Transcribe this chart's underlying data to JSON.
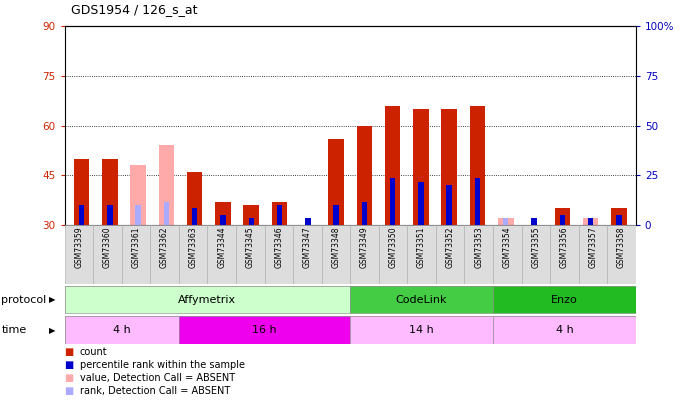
{
  "title": "GDS1954 / 126_s_at",
  "samples": [
    "GSM73359",
    "GSM73360",
    "GSM73361",
    "GSM73362",
    "GSM73363",
    "GSM73344",
    "GSM73345",
    "GSM73346",
    "GSM73347",
    "GSM73348",
    "GSM73349",
    "GSM73350",
    "GSM73351",
    "GSM73352",
    "GSM73353",
    "GSM73354",
    "GSM73355",
    "GSM73356",
    "GSM73357",
    "GSM73358"
  ],
  "red_bars": [
    50,
    50,
    0,
    0,
    46,
    37,
    36,
    37,
    0,
    56,
    60,
    66,
    65,
    65,
    66,
    0,
    0,
    35,
    0,
    35
  ],
  "blue_bars": [
    36,
    36,
    0,
    0,
    35,
    33,
    32,
    36,
    32,
    36,
    37,
    44,
    43,
    42,
    44,
    0,
    32,
    33,
    32,
    33
  ],
  "pink_bars": [
    0,
    0,
    48,
    54,
    0,
    0,
    0,
    0,
    0,
    0,
    0,
    0,
    0,
    0,
    0,
    32,
    0,
    32,
    32,
    0
  ],
  "lavender_bars": [
    0,
    0,
    36,
    37,
    0,
    0,
    0,
    0,
    0,
    0,
    0,
    0,
    0,
    0,
    0,
    32,
    32,
    0,
    32,
    0
  ],
  "ylim_left": [
    30,
    90
  ],
  "ylim_right": [
    0,
    100
  ],
  "yticks_left": [
    30,
    45,
    60,
    75,
    90
  ],
  "yticks_right": [
    0,
    25,
    50,
    75,
    100
  ],
  "grid_lines": [
    45,
    60,
    75
  ],
  "protocol_groups": [
    {
      "label": "Affymetrix",
      "start": 0,
      "end": 10,
      "color": "#ccffcc"
    },
    {
      "label": "CodeLink",
      "start": 10,
      "end": 15,
      "color": "#44cc44"
    },
    {
      "label": "Enzo",
      "start": 15,
      "end": 20,
      "color": "#22bb22"
    }
  ],
  "time_groups": [
    {
      "label": "4 h",
      "start": 0,
      "end": 4,
      "color": "#ffbbff"
    },
    {
      "label": "16 h",
      "start": 4,
      "end": 10,
      "color": "#ee00ee"
    },
    {
      "label": "14 h",
      "start": 10,
      "end": 15,
      "color": "#ffbbff"
    },
    {
      "label": "4 h",
      "start": 15,
      "end": 20,
      "color": "#ffbbff"
    }
  ],
  "legend_items": [
    {
      "label": "count",
      "color": "#cc2200"
    },
    {
      "label": "percentile rank within the sample",
      "color": "#0000cc"
    },
    {
      "label": "value, Detection Call = ABSENT",
      "color": "#ffaaaa"
    },
    {
      "label": "rank, Detection Call = ABSENT",
      "color": "#aaaaff"
    }
  ],
  "bar_color_red": "#cc2200",
  "bar_color_blue": "#0000cc",
  "bar_color_pink": "#ffaaaa",
  "bar_color_lavender": "#aaaaff",
  "bg_color": "#ffffff",
  "tick_color_left": "#cc2200",
  "tick_color_right": "#0000bb",
  "sample_bg": "#dddddd"
}
